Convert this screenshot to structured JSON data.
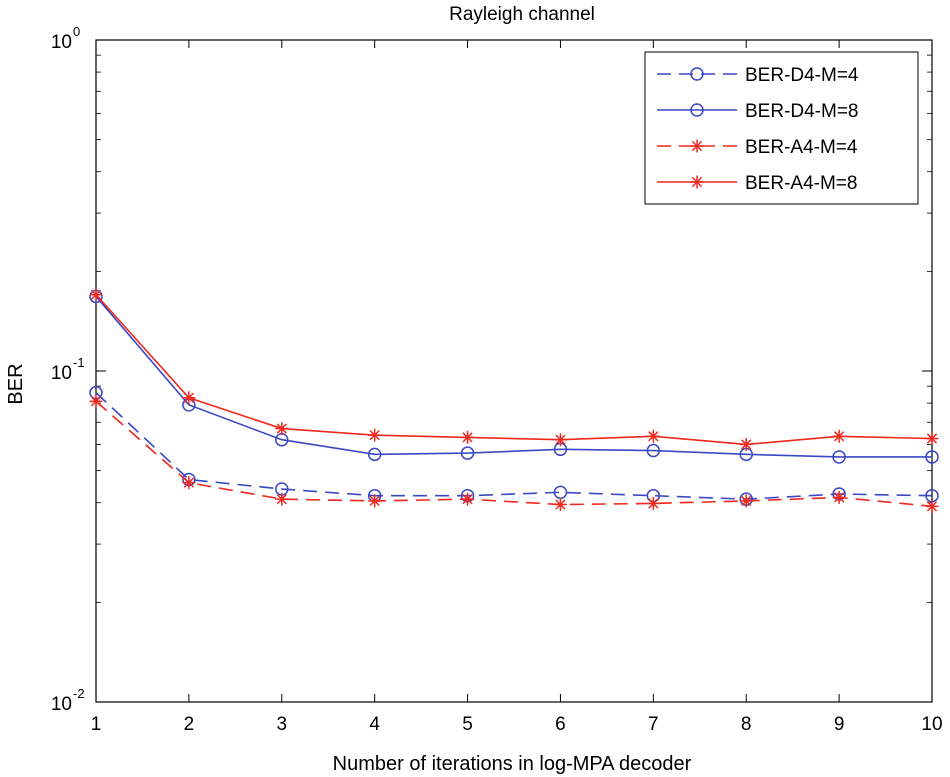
{
  "chart_data": {
    "type": "line",
    "title": "Rayleigh channel",
    "xlabel": "Number of iterations in log-MPA decoder",
    "ylabel": "BER",
    "yscale": "log",
    "xlim": [
      1,
      10
    ],
    "ylim": [
      0.01,
      1
    ],
    "x": [
      1,
      2,
      3,
      4,
      5,
      6,
      7,
      8,
      9,
      10
    ],
    "x_ticks": [
      "1",
      "2",
      "3",
      "4",
      "5",
      "6",
      "7",
      "8",
      "9",
      "10"
    ],
    "y_ticks": [
      {
        "base": "10",
        "exp": "-2",
        "value": 0.01
      },
      {
        "base": "10",
        "exp": "-1",
        "value": 0.1
      },
      {
        "base": "10",
        "exp": "0",
        "value": 1
      }
    ],
    "legend_position": "top-right",
    "series": [
      {
        "name": "BER-D4-M=4",
        "color": "#3b48c4",
        "line": "dashed",
        "marker": "circle",
        "values": [
          0.086,
          0.047,
          0.044,
          0.042,
          0.042,
          0.043,
          0.042,
          0.041,
          0.0425,
          0.042
        ]
      },
      {
        "name": "BER-D4-M=8",
        "color": "#3b48c4",
        "line": "solid",
        "marker": "circle",
        "values": [
          0.168,
          0.079,
          0.062,
          0.056,
          0.0565,
          0.058,
          0.0575,
          0.056,
          0.055,
          0.055
        ]
      },
      {
        "name": "BER-A4-M=4",
        "color": "#f0281e",
        "line": "dashed",
        "marker": "star",
        "values": [
          0.081,
          0.046,
          0.041,
          0.0405,
          0.041,
          0.0395,
          0.0398,
          0.0405,
          0.0415,
          0.039
        ]
      },
      {
        "name": "BER-A4-M=8",
        "color": "#f0281e",
        "line": "solid",
        "marker": "star",
        "values": [
          0.17,
          0.083,
          0.067,
          0.064,
          0.063,
          0.062,
          0.0635,
          0.06,
          0.0635,
          0.0625
        ]
      }
    ]
  }
}
